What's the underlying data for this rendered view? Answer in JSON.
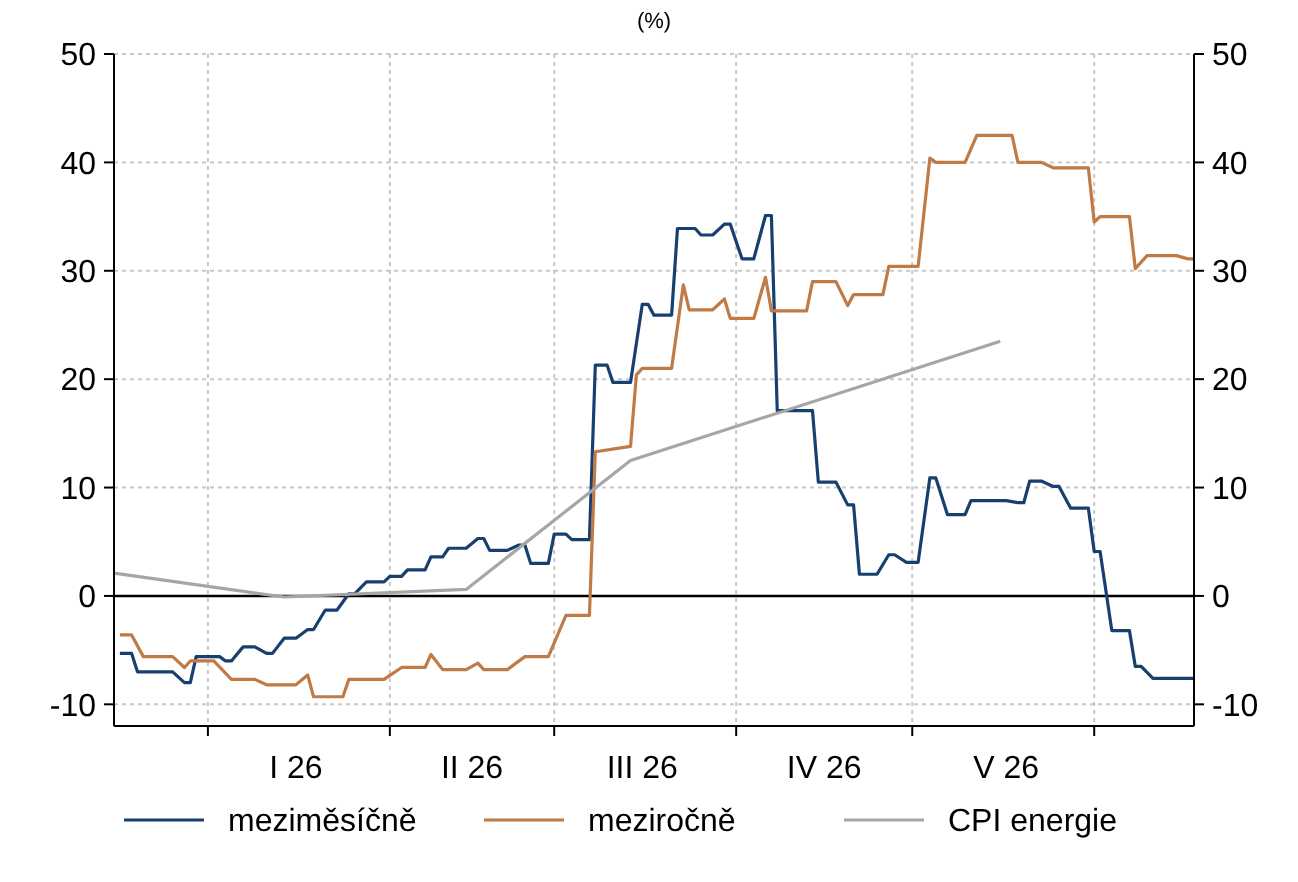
{
  "chart_data": {
    "type": "line",
    "title": "(%)",
    "xlim": [
      "2025-12-16",
      "2026-06-18"
    ],
    "xticks": [
      {
        "value": "2026-01-01",
        "label": null
      },
      {
        "value": "2026-01-16",
        "label": "I 26"
      },
      {
        "value": "2026-02-01",
        "label": null
      },
      {
        "value": "2026-02-15",
        "label": "II 26"
      },
      {
        "value": "2026-03-01",
        "label": null
      },
      {
        "value": "2026-03-16",
        "label": "III 26"
      },
      {
        "value": "2026-04-01",
        "label": null
      },
      {
        "value": "2026-04-16",
        "label": "IV 26"
      },
      {
        "value": "2026-05-01",
        "label": null
      },
      {
        "value": "2026-05-17",
        "label": "V 26"
      },
      {
        "value": "2026-06-01",
        "label": null
      }
    ],
    "ylim": [
      -12,
      50
    ],
    "yticks": [
      -10,
      0,
      10,
      20,
      30,
      40,
      50
    ],
    "y2lim": [
      -12,
      50
    ],
    "y2ticks": [
      -10,
      0,
      10,
      20,
      30,
      40,
      50
    ],
    "grid": true,
    "legend": "bottom",
    "ref_lines": [
      {
        "axis": "y",
        "value": 0,
        "color": "#000000"
      }
    ],
    "series": [
      {
        "name": "meziměsíčně",
        "color": "#173f6f",
        "x": [
          "2025-12-17",
          "2025-12-19",
          "2025-12-20",
          "2025-12-26",
          "2025-12-28",
          "2025-12-29",
          "2025-12-30",
          "2026-01-03",
          "2026-01-04",
          "2026-01-05",
          "2026-01-07",
          "2026-01-09",
          "2026-01-11",
          "2026-01-12",
          "2026-01-14",
          "2026-01-16",
          "2026-01-18",
          "2026-01-19",
          "2026-01-21",
          "2026-01-23",
          "2026-01-25",
          "2026-01-26",
          "2026-01-28",
          "2026-01-31",
          "2026-02-01",
          "2026-02-03",
          "2026-02-04",
          "2026-02-07",
          "2026-02-08",
          "2026-02-10",
          "2026-02-11",
          "2026-02-14",
          "2026-02-16",
          "2026-02-17",
          "2026-02-18",
          "2026-02-21",
          "2026-02-23",
          "2026-02-24",
          "2026-02-25",
          "2026-02-28",
          "2026-03-01",
          "2026-03-03",
          "2026-03-04",
          "2026-03-07",
          "2026-03-08",
          "2026-03-10",
          "2026-03-11",
          "2026-03-14",
          "2026-03-16",
          "2026-03-17",
          "2026-03-18",
          "2026-03-21",
          "2026-03-22",
          "2026-03-25",
          "2026-03-26",
          "2026-03-28",
          "2026-03-30",
          "2026-03-31",
          "2026-04-02",
          "2026-04-04",
          "2026-04-06",
          "2026-04-07",
          "2026-04-08",
          "2026-04-14",
          "2026-04-15",
          "2026-04-18",
          "2026-04-20",
          "2026-04-21",
          "2026-04-22",
          "2026-04-25",
          "2026-04-27",
          "2026-04-28",
          "2026-04-30",
          "2026-05-02",
          "2026-05-04",
          "2026-05-05",
          "2026-05-07",
          "2026-05-10",
          "2026-05-11",
          "2026-05-17",
          "2026-05-19",
          "2026-05-20",
          "2026-05-21",
          "2026-05-23",
          "2026-05-25",
          "2026-05-26",
          "2026-05-28",
          "2026-05-31",
          "2026-06-01",
          "2026-06-02",
          "2026-06-04",
          "2026-06-07",
          "2026-06-08",
          "2026-06-09",
          "2026-06-11",
          "2026-06-18"
        ],
        "values": [
          -5.3,
          -5.3,
          -7.0,
          -7.0,
          -8.0,
          -8.0,
          -5.6,
          -5.6,
          -6.0,
          -6.0,
          -4.7,
          -4.7,
          -5.3,
          -5.3,
          -3.9,
          -3.9,
          -3.1,
          -3.1,
          -1.3,
          -1.3,
          0.2,
          0.2,
          1.3,
          1.3,
          1.8,
          1.8,
          2.4,
          2.4,
          3.6,
          3.6,
          4.4,
          4.4,
          5.3,
          5.3,
          4.2,
          4.2,
          4.7,
          4.7,
          3.0,
          3.0,
          5.7,
          5.7,
          5.2,
          5.2,
          21.3,
          21.3,
          19.7,
          19.7,
          26.9,
          26.9,
          25.9,
          25.9,
          33.9,
          33.9,
          33.3,
          33.3,
          34.3,
          34.3,
          31.1,
          31.1,
          35.1,
          35.1,
          17.1,
          17.1,
          10.5,
          10.5,
          8.4,
          8.4,
          2.0,
          2.0,
          3.8,
          3.8,
          3.1,
          3.1,
          10.9,
          10.9,
          7.5,
          7.5,
          8.8,
          8.8,
          8.6,
          8.6,
          10.6,
          10.6,
          10.1,
          10.1,
          8.1,
          8.1,
          4.1,
          4.1,
          -3.2,
          -3.2,
          -6.5,
          -6.5,
          -7.6,
          -7.6
        ]
      },
      {
        "name": "meziročně",
        "color": "#c07a45",
        "x": [
          "2025-12-17",
          "2025-12-19",
          "2025-12-21",
          "2025-12-26",
          "2025-12-28",
          "2025-12-29",
          "2026-01-02",
          "2026-01-05",
          "2026-01-09",
          "2026-01-11",
          "2026-01-16",
          "2026-01-18",
          "2026-01-19",
          "2026-01-24",
          "2026-01-25",
          "2026-01-31",
          "2026-02-03",
          "2026-02-07",
          "2026-02-08",
          "2026-02-10",
          "2026-02-14",
          "2026-02-16",
          "2026-02-17",
          "2026-02-21",
          "2026-02-24",
          "2026-02-28",
          "2026-03-03",
          "2026-03-07",
          "2026-03-08",
          "2026-03-14",
          "2026-03-15",
          "2026-03-16",
          "2026-03-21",
          "2026-03-23",
          "2026-03-24",
          "2026-03-28",
          "2026-03-30",
          "2026-03-31",
          "2026-04-04",
          "2026-04-06",
          "2026-04-07",
          "2026-04-13",
          "2026-04-14",
          "2026-04-18",
          "2026-04-20",
          "2026-04-21",
          "2026-04-26",
          "2026-04-27",
          "2026-05-02",
          "2026-05-04",
          "2026-05-05",
          "2026-05-10",
          "2026-05-12",
          "2026-05-18",
          "2026-05-19",
          "2026-05-23",
          "2026-05-25",
          "2026-05-31",
          "2026-06-01",
          "2026-06-02",
          "2026-06-07",
          "2026-06-08",
          "2026-06-10",
          "2026-06-15",
          "2026-06-17",
          "2026-06-18"
        ],
        "values": [
          -3.6,
          -3.6,
          -5.6,
          -5.6,
          -6.6,
          -6.0,
          -6.0,
          -7.7,
          -7.7,
          -8.2,
          -8.2,
          -7.3,
          -9.3,
          -9.3,
          -7.7,
          -7.7,
          -6.6,
          -6.6,
          -5.4,
          -6.8,
          -6.8,
          -6.2,
          -6.8,
          -6.8,
          -5.6,
          -5.6,
          -1.8,
          -1.8,
          13.3,
          13.8,
          20.4,
          21.0,
          21.0,
          28.7,
          26.4,
          26.4,
          27.4,
          25.6,
          25.6,
          29.4,
          26.3,
          26.3,
          29.0,
          29.0,
          26.8,
          27.8,
          27.8,
          30.4,
          30.4,
          40.4,
          40.0,
          40.0,
          42.5,
          42.5,
          40.0,
          40.0,
          39.5,
          39.5,
          34.5,
          35.0,
          35.0,
          30.2,
          31.4,
          31.4,
          31.1,
          31.1
        ]
      },
      {
        "name": "CPI energie",
        "color": "#a6a6a6",
        "x": [
          "2025-12-16",
          "2026-01-14",
          "2026-02-14",
          "2026-03-14",
          "2026-05-16"
        ],
        "values": [
          2.1,
          -0.1,
          0.6,
          12.5,
          23.5
        ]
      }
    ]
  }
}
